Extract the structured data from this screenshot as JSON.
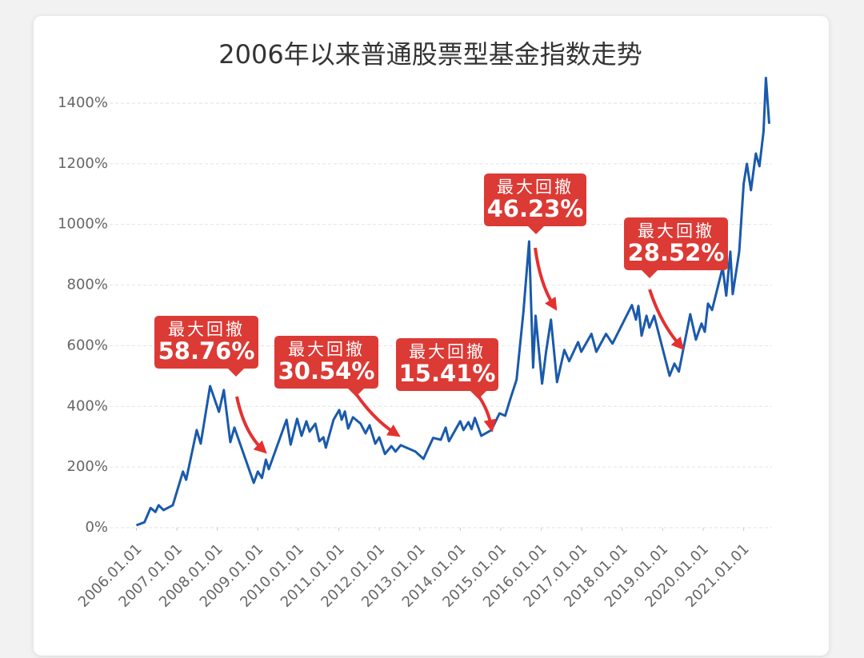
{
  "chart_data": {
    "type": "line",
    "title": "2006年以来普通股票型基金指数走势",
    "x": [
      2006.0,
      2006.2,
      2006.35,
      2006.47,
      2006.55,
      2006.67,
      2006.9,
      2007.15,
      2007.23,
      2007.49,
      2007.59,
      2007.82,
      2008.04,
      2008.16,
      2008.32,
      2008.42,
      2008.9,
      2009.0,
      2009.1,
      2009.2,
      2009.27,
      2009.71,
      2009.81,
      2009.97,
      2010.08,
      2010.2,
      2010.28,
      2010.42,
      2010.52,
      2010.62,
      2010.68,
      2010.87,
      2011.01,
      2011.07,
      2011.15,
      2011.23,
      2011.35,
      2011.54,
      2011.66,
      2011.76,
      2011.9,
      2012.0,
      2012.14,
      2012.3,
      2012.4,
      2012.53,
      2012.89,
      2013.09,
      2013.33,
      2013.52,
      2013.64,
      2013.72,
      2014.0,
      2014.08,
      2014.2,
      2014.28,
      2014.36,
      2014.52,
      2014.77,
      2014.97,
      2015.11,
      2015.23,
      2015.39,
      2015.56,
      2015.7,
      2015.8,
      2015.86,
      2016.02,
      2016.12,
      2016.24,
      2016.39,
      2016.57,
      2016.69,
      2016.91,
      2016.99,
      2017.24,
      2017.36,
      2017.6,
      2017.76,
      2018.24,
      2018.34,
      2018.4,
      2018.48,
      2018.6,
      2018.67,
      2018.79,
      2019.17,
      2019.29,
      2019.4,
      2019.68,
      2019.82,
      2019.96,
      2020.04,
      2020.12,
      2020.22,
      2020.48,
      2020.57,
      2020.67,
      2020.73,
      2020.89,
      2021.0,
      2021.08,
      2021.18,
      2021.3,
      2021.39,
      2021.49,
      2021.55,
      2021.63
    ],
    "series": [
      {
        "color": "#1a5aab",
        "values": [
          8,
          18,
          65,
          52,
          74,
          58,
          74,
          185,
          158,
          322,
          277,
          467,
          382,
          454,
          282,
          330,
          148,
          185,
          164,
          224,
          193,
          356,
          274,
          359,
          303,
          351,
          317,
          343,
          285,
          298,
          264,
          356,
          388,
          356,
          383,
          327,
          364,
          343,
          311,
          338,
          277,
          298,
          243,
          269,
          251,
          272,
          251,
          227,
          296,
          290,
          330,
          285,
          351,
          322,
          348,
          325,
          362,
          303,
          322,
          377,
          369,
          422,
          488,
          712,
          944,
          528,
          699,
          475,
          580,
          686,
          480,
          586,
          549,
          612,
          580,
          639,
          580,
          639,
          607,
          734,
          686,
          731,
          633,
          699,
          660,
          699,
          501,
          541,
          515,
          704,
          620,
          673,
          646,
          739,
          718,
          858,
          765,
          910,
          770,
          910,
          1134,
          1200,
          1113,
          1234,
          1192,
          1306,
          1483,
          1332
        ]
      }
    ],
    "xlim": [
      2005.2,
      2021.7
    ],
    "xticks": [
      {
        "value": 2006,
        "label": "2006.01.01"
      },
      {
        "value": 2007,
        "label": "2007.01.01"
      },
      {
        "value": 2008,
        "label": "2008.01.01"
      },
      {
        "value": 2009,
        "label": "2009.01.01"
      },
      {
        "value": 2010,
        "label": "2010.01.01"
      },
      {
        "value": 2011,
        "label": "2011.01.01"
      },
      {
        "value": 2012,
        "label": "2012.01.01"
      },
      {
        "value": 2013,
        "label": "2013.01.01"
      },
      {
        "value": 2014,
        "label": "2014.01.01"
      },
      {
        "value": 2015,
        "label": "2015.01.01"
      },
      {
        "value": 2016,
        "label": "2016.01.01"
      },
      {
        "value": 2017,
        "label": "2017.01.01"
      },
      {
        "value": 2018,
        "label": "2018.01.01"
      },
      {
        "value": 2019,
        "label": "2019.01.01"
      },
      {
        "value": 2020,
        "label": "2020.01.01"
      },
      {
        "value": 2021,
        "label": "2021.01.01"
      }
    ],
    "ylim": [
      0,
      1400
    ],
    "yticks": [
      {
        "value": 0,
        "label": "0%"
      },
      {
        "value": 200,
        "label": "200%"
      },
      {
        "value": 400,
        "label": "400%"
      },
      {
        "value": 600,
        "label": "600%"
      },
      {
        "value": 800,
        "label": "800%"
      },
      {
        "value": 1000,
        "label": "1000%"
      },
      {
        "value": 1200,
        "label": "1200%"
      },
      {
        "value": 1400,
        "label": "1400%"
      }
    ],
    "grid": true,
    "annotations": [
      {
        "title": "最大回撤",
        "value": "58.76%"
      },
      {
        "title": "最大回撤",
        "value": "30.54%"
      },
      {
        "title": "最大回撤",
        "value": "15.41%"
      },
      {
        "title": "最大回撤",
        "value": "46.23%"
      },
      {
        "title": "最大回撤",
        "value": "28.52%"
      }
    ]
  }
}
